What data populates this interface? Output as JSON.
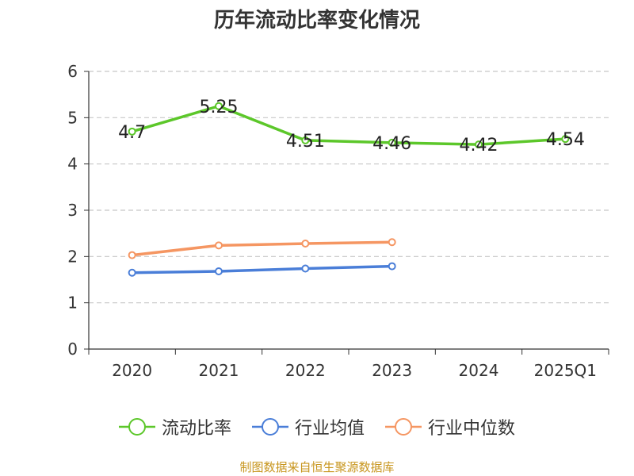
{
  "title": "历年流动比率变化情况",
  "source_note": "制图数据来自恒生聚源数据库",
  "chart_data": {
    "type": "line",
    "categories": [
      "2020",
      "2021",
      "2022",
      "2023",
      "2024",
      "2025Q1"
    ],
    "ylim": [
      0,
      6
    ],
    "yticks": [
      "0",
      "1",
      "2",
      "3",
      "4",
      "5",
      "6"
    ],
    "grid": "horizontal-dashed",
    "legend_position": "bottom",
    "series": [
      {
        "name": "流动比率",
        "color": "#5cc72a",
        "values": [
          4.7,
          5.25,
          4.51,
          4.46,
          4.42,
          4.54
        ],
        "labels": [
          "4.7",
          "5.25",
          "4.51",
          "4.46",
          "4.42",
          "4.54"
        ]
      },
      {
        "name": "行业均值",
        "color": "#4a7ed8",
        "values": [
          1.65,
          1.68,
          1.74,
          1.79,
          null,
          null
        ],
        "labels": []
      },
      {
        "name": "行业中位数",
        "color": "#f59662",
        "values": [
          2.03,
          2.24,
          2.28,
          2.31,
          null,
          null
        ],
        "labels": []
      }
    ]
  }
}
